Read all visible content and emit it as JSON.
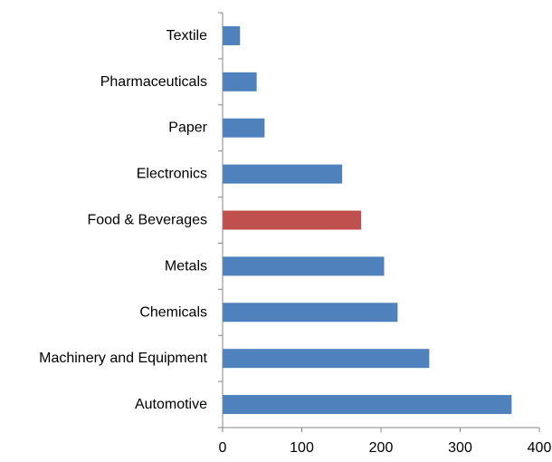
{
  "chart_data": {
    "type": "bar",
    "orientation": "horizontal",
    "categories": [
      "Automotive",
      "Machinery and Equipment",
      "Chemicals",
      "Metals",
      "Food & Beverages",
      "Electronics",
      "Paper",
      "Pharmaceuticals",
      "Textile"
    ],
    "values": [
      365,
      261,
      221,
      204,
      175,
      151,
      53,
      43,
      22
    ],
    "bar_colors": [
      "#4F81BD",
      "#4F81BD",
      "#4F81BD",
      "#4F81BD",
      "#C0504D",
      "#4F81BD",
      "#4F81BD",
      "#4F81BD",
      "#4F81BD"
    ],
    "title": "",
    "xlabel": "",
    "ylabel": "",
    "xlim": [
      0,
      400
    ],
    "xticks": [
      0,
      100,
      200,
      300,
      400
    ],
    "grid": false,
    "legend": "none"
  }
}
